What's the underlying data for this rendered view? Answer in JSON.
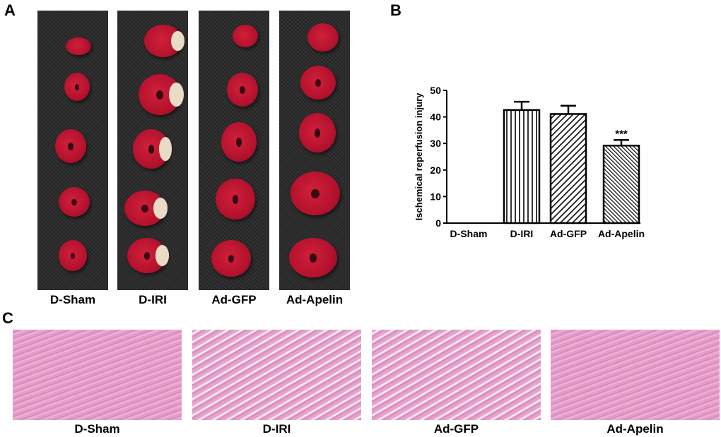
{
  "panels": {
    "a": "A",
    "b": "B",
    "c": "C"
  },
  "groups": [
    "D-Sham",
    "D-IRI",
    "Ad-GFP",
    "Ad-Apelin"
  ],
  "chart_data": {
    "type": "bar",
    "categories": [
      "D-Sham",
      "D-IRI",
      "Ad-GFP",
      "Ad-Apelin"
    ],
    "values": [
      0,
      42.6,
      41.1,
      29.2
    ],
    "error_upper": [
      0,
      45.7,
      44.2,
      31.3
    ],
    "patterns": [
      "none",
      "vertical-lines",
      "diagonal-lines",
      "dense-diagonal-lines"
    ],
    "annotations": [
      {
        "category": "Ad-Apelin",
        "text": "***"
      }
    ],
    "ylabel": "Ischemical reperfusion injury",
    "xlabel": "",
    "ylim": [
      0,
      50
    ],
    "yticks": [
      "0",
      "10",
      "20",
      "30",
      "40",
      "50"
    ],
    "grid": false
  }
}
